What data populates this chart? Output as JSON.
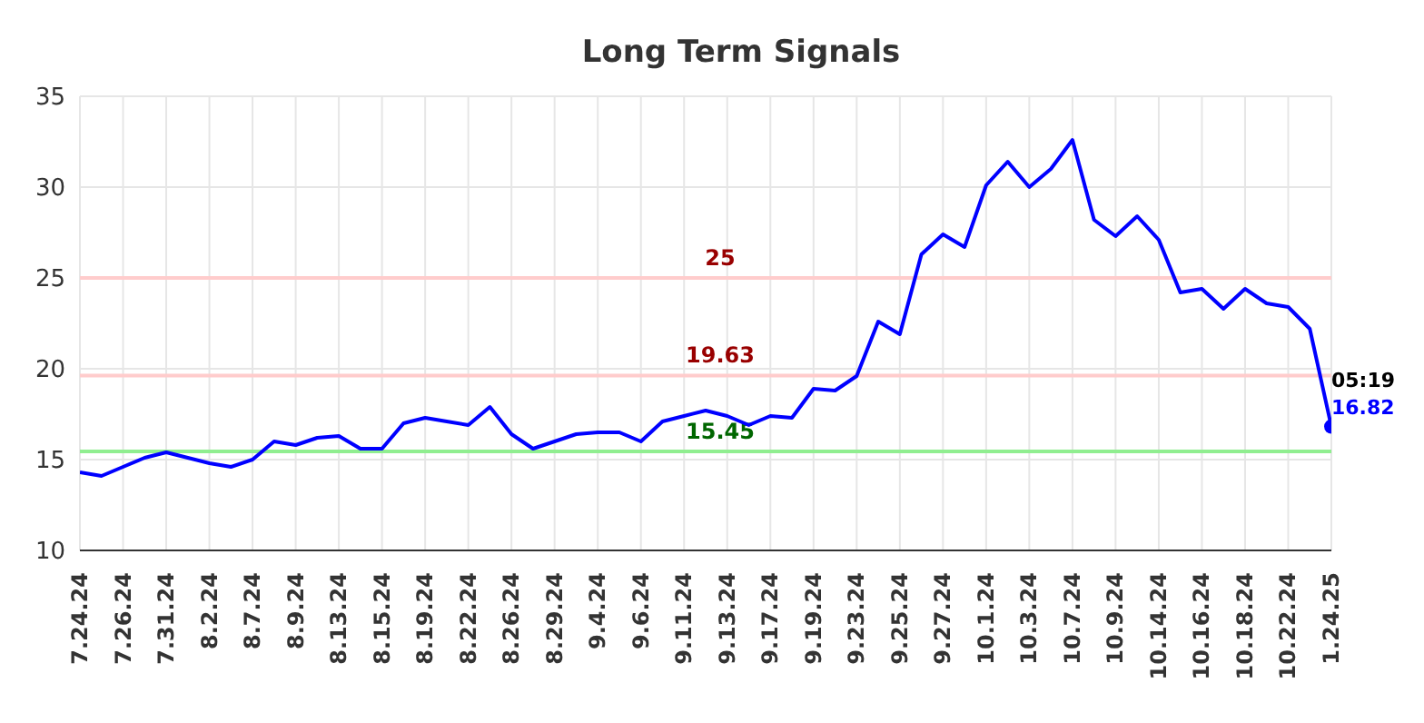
{
  "chart_data": {
    "type": "line",
    "title": "Long Term Signals",
    "categories": [
      "7.24.24",
      null,
      "7.26.24",
      null,
      "7.31.24",
      null,
      "8.2.24",
      null,
      "8.7.24",
      null,
      "8.9.24",
      null,
      "8.13.24",
      null,
      "8.15.24",
      null,
      "8.19.24",
      null,
      "8.22.24",
      null,
      "8.26.24",
      null,
      "8.29.24",
      null,
      "9.4.24",
      null,
      "9.6.24",
      null,
      "9.11.24",
      null,
      "9.13.24",
      null,
      "9.17.24",
      null,
      "9.19.24",
      null,
      "9.23.24",
      null,
      "9.25.24",
      null,
      "9.27.24",
      null,
      "10.1.24",
      null,
      "10.3.24",
      null,
      "10.7.24",
      null,
      "10.9.24",
      null,
      "10.14.24",
      null,
      "10.16.24",
      null,
      "10.18.24",
      null,
      "10.22.24",
      null,
      "1.24.25"
    ],
    "series": [
      {
        "color": "#0000ff",
        "values": [
          14.3,
          14.1,
          14.6,
          15.1,
          15.4,
          15.1,
          14.8,
          14.6,
          15.0,
          16.0,
          15.8,
          16.2,
          16.3,
          15.6,
          15.6,
          17.0,
          17.3,
          17.1,
          16.9,
          17.9,
          16.4,
          15.6,
          16.0,
          16.4,
          16.5,
          16.5,
          16.0,
          17.1,
          17.4,
          17.7,
          17.4,
          16.9,
          17.4,
          17.3,
          18.9,
          18.8,
          19.6,
          22.6,
          21.9,
          26.3,
          27.4,
          26.7,
          30.1,
          31.4,
          30.0,
          31.0,
          32.6,
          28.2,
          27.3,
          28.4,
          27.1,
          24.2,
          24.4,
          23.3,
          24.4,
          23.6,
          23.4,
          22.2,
          16.82
        ]
      }
    ],
    "ylim": [
      10,
      35
    ],
    "yticks": [
      10,
      15,
      20,
      25,
      30,
      35
    ],
    "grid": true,
    "ref_lines": [
      {
        "axis": "y",
        "value": 25,
        "label": "25",
        "color": "#ffcccc"
      },
      {
        "axis": "y",
        "value": 19.63,
        "label": "19.63",
        "color": "#ffcccc"
      },
      {
        "axis": "y",
        "value": 15.45,
        "label": "15.45",
        "color": "#90ee90"
      }
    ],
    "annotations": [
      {
        "text": "05:19",
        "x": "1.24.25",
        "y": 16.82
      },
      {
        "text": "16.82",
        "x": "1.24.25",
        "y": 16.82
      }
    ]
  }
}
